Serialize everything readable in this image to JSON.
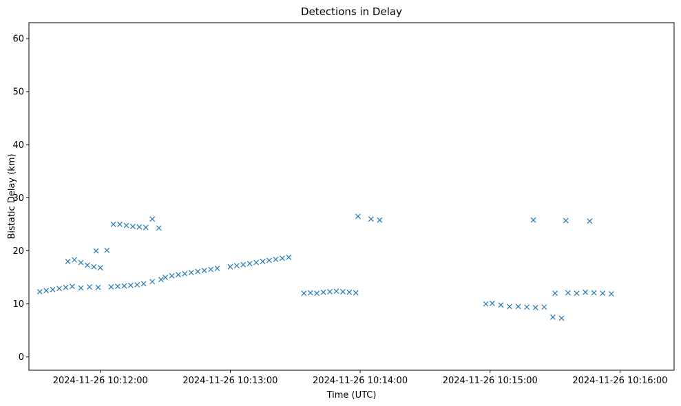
{
  "chart_data": {
    "type": "scatter",
    "title": "Detections in Delay",
    "xlabel": "Time (UTC)",
    "ylabel": "Bistatic Delay (km)",
    "x_range": [
      "2024-11-26 10:11:27",
      "2024-11-26 10:16:25"
    ],
    "ylim": [
      -2.5,
      63
    ],
    "x_ticks": [
      {
        "value": "2024-11-26 10:12:00",
        "label": "2024-11-26 10:12:00"
      },
      {
        "value": "2024-11-26 10:13:00",
        "label": "2024-11-26 10:13:00"
      },
      {
        "value": "2024-11-26 10:14:00",
        "label": "2024-11-26 10:14:00"
      },
      {
        "value": "2024-11-26 10:15:00",
        "label": "2024-11-26 10:15:00"
      },
      {
        "value": "2024-11-26 10:16:00",
        "label": "2024-11-26 10:16:00"
      }
    ],
    "y_ticks": [
      0,
      10,
      20,
      30,
      40,
      50,
      60
    ],
    "grid": false,
    "marker": "x",
    "color": "#1f77b4",
    "series": [
      {
        "name": "",
        "points": [
          [
            "2024-11-26 10:11:32",
            12.3
          ],
          [
            "2024-11-26 10:11:35",
            12.5
          ],
          [
            "2024-11-26 10:11:38",
            12.7
          ],
          [
            "2024-11-26 10:11:41",
            12.9
          ],
          [
            "2024-11-26 10:11:44",
            13.1
          ],
          [
            "2024-11-26 10:11:47",
            13.3
          ],
          [
            "2024-11-26 10:11:51",
            13.0
          ],
          [
            "2024-11-26 10:11:55",
            13.2
          ],
          [
            "2024-11-26 10:11:59",
            13.1
          ],
          [
            "2024-11-26 10:12:05",
            13.2
          ],
          [
            "2024-11-26 10:12:08",
            13.3
          ],
          [
            "2024-11-26 10:12:11",
            13.4
          ],
          [
            "2024-11-26 10:12:14",
            13.5
          ],
          [
            "2024-11-26 10:12:17",
            13.6
          ],
          [
            "2024-11-26 10:12:20",
            13.8
          ],
          [
            "2024-11-26 10:12:24",
            14.2
          ],
          [
            "2024-11-26 10:12:28",
            14.6
          ],
          [
            "2024-11-26 10:12:30",
            15.0
          ],
          [
            "2024-11-26 10:12:33",
            15.3
          ],
          [
            "2024-11-26 10:12:36",
            15.5
          ],
          [
            "2024-11-26 10:12:39",
            15.7
          ],
          [
            "2024-11-26 10:12:42",
            15.9
          ],
          [
            "2024-11-26 10:12:45",
            16.1
          ],
          [
            "2024-11-26 10:12:48",
            16.3
          ],
          [
            "2024-11-26 10:12:51",
            16.5
          ],
          [
            "2024-11-26 10:12:54",
            16.7
          ],
          [
            "2024-11-26 10:13:00",
            17.0
          ],
          [
            "2024-11-26 10:13:03",
            17.2
          ],
          [
            "2024-11-26 10:13:06",
            17.4
          ],
          [
            "2024-11-26 10:13:09",
            17.6
          ],
          [
            "2024-11-26 10:13:12",
            17.8
          ],
          [
            "2024-11-26 10:13:15",
            18.0
          ],
          [
            "2024-11-26 10:13:18",
            18.2
          ],
          [
            "2024-11-26 10:13:21",
            18.4
          ],
          [
            "2024-11-26 10:13:24",
            18.6
          ],
          [
            "2024-11-26 10:13:27",
            18.8
          ],
          [
            "2024-11-26 10:11:45",
            18.0
          ],
          [
            "2024-11-26 10:11:48",
            18.3
          ],
          [
            "2024-11-26 10:11:51",
            17.8
          ],
          [
            "2024-11-26 10:11:54",
            17.3
          ],
          [
            "2024-11-26 10:11:57",
            17.0
          ],
          [
            "2024-11-26 10:12:00",
            16.8
          ],
          [
            "2024-11-26 10:11:58",
            20.0
          ],
          [
            "2024-11-26 10:12:03",
            20.1
          ],
          [
            "2024-11-26 10:12:06",
            25.0
          ],
          [
            "2024-11-26 10:12:09",
            25.0
          ],
          [
            "2024-11-26 10:12:12",
            24.8
          ],
          [
            "2024-11-26 10:12:15",
            24.6
          ],
          [
            "2024-11-26 10:12:18",
            24.5
          ],
          [
            "2024-11-26 10:12:21",
            24.4
          ],
          [
            "2024-11-26 10:12:24",
            26.0
          ],
          [
            "2024-11-26 10:12:27",
            24.3
          ],
          [
            "2024-11-26 10:13:34",
            12.0
          ],
          [
            "2024-11-26 10:13:37",
            12.1
          ],
          [
            "2024-11-26 10:13:40",
            12.0
          ],
          [
            "2024-11-26 10:13:43",
            12.2
          ],
          [
            "2024-11-26 10:13:46",
            12.3
          ],
          [
            "2024-11-26 10:13:49",
            12.4
          ],
          [
            "2024-11-26 10:13:52",
            12.3
          ],
          [
            "2024-11-26 10:13:55",
            12.2
          ],
          [
            "2024-11-26 10:13:58",
            12.1
          ],
          [
            "2024-11-26 10:13:59",
            26.5
          ],
          [
            "2024-11-26 10:14:05",
            26.0
          ],
          [
            "2024-11-26 10:14:09",
            25.8
          ],
          [
            "2024-11-26 10:14:58",
            10.0
          ],
          [
            "2024-11-26 10:15:01",
            10.1
          ],
          [
            "2024-11-26 10:15:05",
            9.8
          ],
          [
            "2024-11-26 10:15:09",
            9.5
          ],
          [
            "2024-11-26 10:15:13",
            9.5
          ],
          [
            "2024-11-26 10:15:17",
            9.4
          ],
          [
            "2024-11-26 10:15:21",
            9.3
          ],
          [
            "2024-11-26 10:15:25",
            9.4
          ],
          [
            "2024-11-26 10:15:29",
            7.5
          ],
          [
            "2024-11-26 10:15:33",
            7.3
          ],
          [
            "2024-11-26 10:15:30",
            12.0
          ],
          [
            "2024-11-26 10:15:36",
            12.1
          ],
          [
            "2024-11-26 10:15:40",
            12.0
          ],
          [
            "2024-11-26 10:15:44",
            12.2
          ],
          [
            "2024-11-26 10:15:48",
            12.1
          ],
          [
            "2024-11-26 10:15:52",
            12.0
          ],
          [
            "2024-11-26 10:15:56",
            11.9
          ],
          [
            "2024-11-26 10:15:20",
            25.8
          ],
          [
            "2024-11-26 10:15:35",
            25.7
          ],
          [
            "2024-11-26 10:15:46",
            25.6
          ]
        ]
      }
    ]
  }
}
